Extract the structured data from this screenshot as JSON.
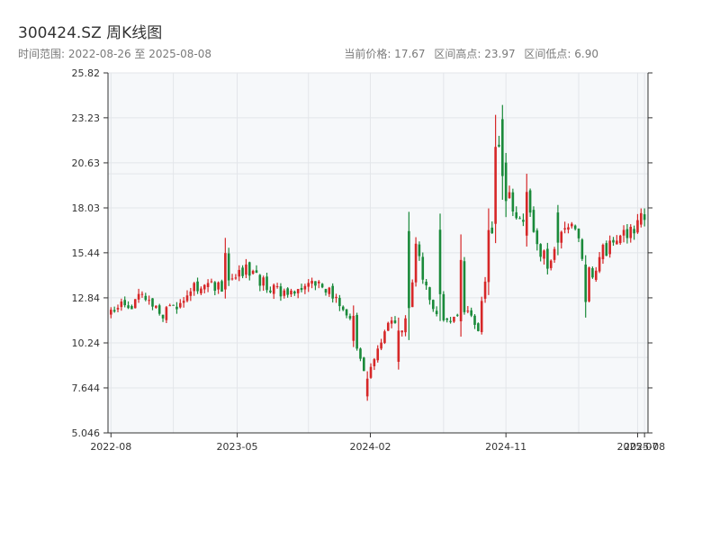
{
  "header": {
    "title": "300424.SZ 周K线图",
    "date_range": "时间范围: 2022-08-26 至 2025-08-08",
    "current_price": "当前价格: 17.67",
    "range_high": "区间高点: 23.97",
    "range_low": "区间低点: 6.90"
  },
  "colors": {
    "up": "#d62728",
    "down": "#1a8a3a",
    "plot_bg": "#f6f8fa",
    "grid": "#e3e6ea",
    "axis": "#333333"
  },
  "chart_data": {
    "type": "candlestick",
    "title": "300424.SZ 周K线图",
    "xlabel": "",
    "ylabel": "",
    "ylim": [
      5.046,
      25.82
    ],
    "xlim": [
      "2022-08-20",
      "2025-08-15"
    ],
    "grid": true,
    "y_ticks": [
      "5.046",
      "7.644",
      "10.24",
      "12.84",
      "15.44",
      "18.03",
      "20.63",
      "23.23",
      "25.82"
    ],
    "x_ticks": [
      {
        "label": "2022-08",
        "date": "2022-08-26"
      },
      {
        "label": "2023-05",
        "date": "2023-05-08"
      },
      {
        "label": "2024-02",
        "date": "2024-02-01"
      },
      {
        "label": "2024-11",
        "date": "2024-11-01"
      },
      {
        "label": "2025-07",
        "date": "2025-07-25"
      },
      {
        "label": "2025-08",
        "date": "2025-08-08"
      }
    ],
    "close_path": [
      [
        "2022-08-26",
        11.9
      ],
      [
        "2022-09-16",
        12.8
      ],
      [
        "2022-10-07",
        12.2
      ],
      [
        "2022-10-28",
        13.0
      ],
      [
        "2022-11-18",
        12.4
      ],
      [
        "2022-12-09",
        11.9
      ],
      [
        "2022-12-30",
        12.3
      ],
      [
        "2023-01-20",
        12.5
      ],
      [
        "2023-02-10",
        13.4
      ],
      [
        "2023-03-03",
        13.9
      ],
      [
        "2023-03-24",
        13.3
      ],
      [
        "2023-04-14",
        13.6
      ],
      [
        "2023-05-05",
        14.2
      ],
      [
        "2023-05-26",
        14.5
      ],
      [
        "2023-06-16",
        14.0
      ],
      [
        "2023-07-07",
        13.5
      ],
      [
        "2023-07-28",
        13.2
      ],
      [
        "2023-08-18",
        12.9
      ],
      [
        "2023-09-08",
        13.0
      ],
      [
        "2023-09-29",
        13.6
      ],
      [
        "2023-10-20",
        13.9
      ],
      [
        "2023-11-10",
        13.2
      ],
      [
        "2023-12-01",
        12.4
      ],
      [
        "2023-12-22",
        11.5
      ],
      [
        "2024-01-12",
        9.3
      ],
      [
        "2024-01-26",
        8.2
      ],
      [
        "2024-02-16",
        9.8
      ],
      [
        "2024-03-08",
        11.5
      ],
      [
        "2024-03-29",
        10.9
      ],
      [
        "2024-04-19",
        11.8
      ],
      [
        "2024-05-03",
        16.0
      ],
      [
        "2024-05-24",
        13.4
      ],
      [
        "2024-06-14",
        12.1
      ],
      [
        "2024-07-05",
        11.4
      ],
      [
        "2024-07-26",
        11.9
      ],
      [
        "2024-08-16",
        12.0
      ],
      [
        "2024-09-06",
        11.2
      ],
      [
        "2024-09-27",
        14.6
      ],
      [
        "2024-10-18",
        21.5
      ],
      [
        "2024-11-08",
        18.8
      ],
      [
        "2024-11-29",
        17.2
      ],
      [
        "2024-12-20",
        17.5
      ],
      [
        "2025-01-10",
        15.5
      ],
      [
        "2025-01-31",
        14.6
      ],
      [
        "2025-02-21",
        16.5
      ],
      [
        "2025-03-14",
        17.3
      ],
      [
        "2025-04-04",
        15.4
      ],
      [
        "2025-04-25",
        14.3
      ],
      [
        "2025-05-16",
        15.5
      ],
      [
        "2025-06-06",
        15.9
      ],
      [
        "2025-06-27",
        16.4
      ],
      [
        "2025-07-18",
        17.0
      ],
      [
        "2025-08-08",
        17.67
      ]
    ],
    "events": [
      [
        "2023-04-14",
        12.8,
        16.3
      ],
      [
        "2023-12-29",
        10.0,
        12.4
      ],
      [
        "2024-01-26",
        6.9,
        8.6
      ],
      [
        "2024-03-29",
        8.7,
        11.7
      ],
      [
        "2024-04-19",
        10.4,
        17.8
      ],
      [
        "2024-06-21",
        11.5,
        17.7
      ],
      [
        "2024-08-02",
        10.6,
        16.5
      ],
      [
        "2024-09-27",
        13.0,
        18.0
      ],
      [
        "2024-10-11",
        16.0,
        23.4
      ],
      [
        "2024-10-25",
        18.5,
        23.97
      ],
      [
        "2024-11-01",
        17.5,
        21.2
      ],
      [
        "2024-12-13",
        15.8,
        20.0
      ],
      [
        "2025-02-14",
        15.3,
        18.2
      ],
      [
        "2025-04-11",
        11.7,
        15.3
      ],
      [
        "2025-08-01",
        16.9,
        18.0
      ]
    ]
  }
}
